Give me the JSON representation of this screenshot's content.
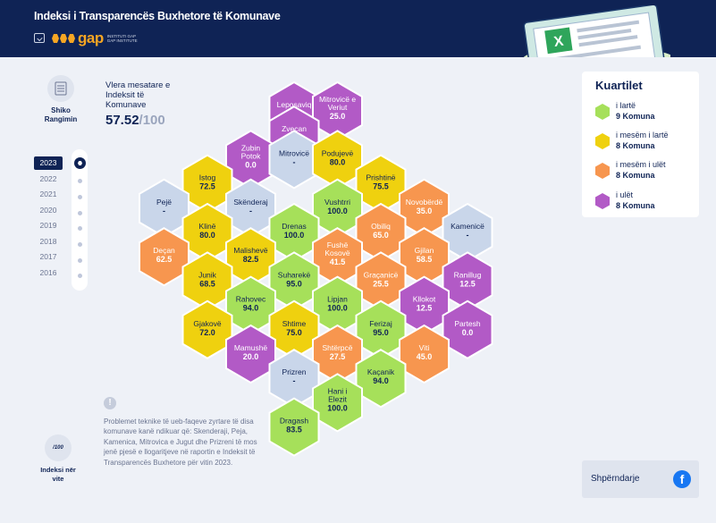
{
  "header": {
    "title": "Indeksi i Transparencës Buxhetore të Komunave",
    "logo_word": "gap",
    "logo_sub_1": "INSTITUTI GAP",
    "logo_sub_2": "GAP INSTITUTE"
  },
  "summary": {
    "rank_link": "Shiko Rangimin",
    "avg_label": "Vlera mesatare e Indeksit të Komunave",
    "avg_value": "57.52",
    "avg_den": "/100"
  },
  "years": {
    "items": [
      "2023",
      "2022",
      "2021",
      "2020",
      "2019",
      "2018",
      "2017",
      "2016"
    ],
    "selected": "2023"
  },
  "note": {
    "icon": "!",
    "text": "Problemet teknike të ueb-faqeve zyrtare të disa komunave kanë ndikuar që: Skenderaji, Peja, Kamenica, Mitrovica e Jugut dhe Prizreni të mos jenë pjesë e llogaritjeve në raportin e Indeksit të Transparencës Buxhetore për vitin 2023."
  },
  "index_link": {
    "icon_text": "/100",
    "label": "Indeksi nër vite"
  },
  "legend": {
    "title": "Kuartilet",
    "items": [
      {
        "name": "i lartë",
        "count": "9 Komuna",
        "color": "#a6e05a"
      },
      {
        "name": "i mesëm i lartë",
        "count": "8 Komuna",
        "color": "#efd10f"
      },
      {
        "name": "i mesëm i ulët",
        "count": "8 Komuna",
        "color": "#f7964f"
      },
      {
        "name": "i ulët",
        "count": "8 Komuna",
        "color": "#b25ac6"
      }
    ]
  },
  "share": {
    "label": "Shpërndarje",
    "icon": "f"
  },
  "colors": {
    "high": "#a6e05a",
    "midhigh": "#efd10f",
    "midlow": "#f7964f",
    "low": "#b25ac6",
    "na": "#c9d6ea"
  },
  "municipalities": [
    {
      "name": "Leposaviq",
      "value": "0.0",
      "tier": "low",
      "col": 6,
      "row": 0
    },
    {
      "name": "Mitrovicë e Veriut",
      "value": "25.0",
      "tier": "low",
      "col": 7,
      "row": 0
    },
    {
      "name": "Zveçan",
      "value": "0.0",
      "tier": "low",
      "col": 6,
      "row": 1
    },
    {
      "name": "Zubin Potok",
      "value": "0.0",
      "tier": "low",
      "col": 5,
      "row": 2
    },
    {
      "name": "Mitrovicë",
      "value": "-",
      "tier": "na",
      "col": 6,
      "row": 2
    },
    {
      "name": "Podujevë",
      "value": "80.0",
      "tier": "midhigh",
      "col": 7,
      "row": 2
    },
    {
      "name": "Istog",
      "value": "72.5",
      "tier": "midhigh",
      "col": 4,
      "row": 3
    },
    {
      "name": "Prishtinë",
      "value": "75.5",
      "tier": "midhigh",
      "col": 8,
      "row": 3
    },
    {
      "name": "Pejë",
      "value": "-",
      "tier": "na",
      "col": 3,
      "row": 4
    },
    {
      "name": "Skënderaj",
      "value": "-",
      "tier": "na",
      "col": 5,
      "row": 4
    },
    {
      "name": "Vushtrri",
      "value": "100.0",
      "tier": "high",
      "col": 7,
      "row": 4
    },
    {
      "name": "Novobërdë",
      "value": "35.0",
      "tier": "midlow",
      "col": 9,
      "row": 4
    },
    {
      "name": "Klinë",
      "value": "80.0",
      "tier": "midhigh",
      "col": 4,
      "row": 5
    },
    {
      "name": "Drenas",
      "value": "100.0",
      "tier": "high",
      "col": 6,
      "row": 5
    },
    {
      "name": "Obiliq",
      "value": "65.0",
      "tier": "midlow",
      "col": 8,
      "row": 5
    },
    {
      "name": "Kamenicë",
      "value": "-",
      "tier": "na",
      "col": 10,
      "row": 5
    },
    {
      "name": "Deçan",
      "value": "62.5",
      "tier": "midlow",
      "col": 3,
      "row": 6
    },
    {
      "name": "Malishevë",
      "value": "82.5",
      "tier": "midhigh",
      "col": 5,
      "row": 6
    },
    {
      "name": "Fushë Kosovë",
      "value": "41.5",
      "tier": "midlow",
      "col": 7,
      "row": 6
    },
    {
      "name": "Gjilan",
      "value": "58.5",
      "tier": "midlow",
      "col": 9,
      "row": 6
    },
    {
      "name": "Junik",
      "value": "68.5",
      "tier": "midhigh",
      "col": 4,
      "row": 7
    },
    {
      "name": "Suharekë",
      "value": "95.0",
      "tier": "high",
      "col": 6,
      "row": 7
    },
    {
      "name": "Graçanicë",
      "value": "25.5",
      "tier": "midlow",
      "col": 8,
      "row": 7
    },
    {
      "name": "Ranillug",
      "value": "12.5",
      "tier": "low",
      "col": 10,
      "row": 7
    },
    {
      "name": "Rahovec",
      "value": "94.0",
      "tier": "high",
      "col": 5,
      "row": 8
    },
    {
      "name": "Lipjan",
      "value": "100.0",
      "tier": "high",
      "col": 7,
      "row": 8
    },
    {
      "name": "Kllokot",
      "value": "12.5",
      "tier": "low",
      "col": 9,
      "row": 8
    },
    {
      "name": "Gjakovë",
      "value": "72.0",
      "tier": "midhigh",
      "col": 4,
      "row": 9
    },
    {
      "name": "Shtime",
      "value": "75.0",
      "tier": "midhigh",
      "col": 6,
      "row": 9
    },
    {
      "name": "Ferizaj",
      "value": "95.0",
      "tier": "high",
      "col": 8,
      "row": 9
    },
    {
      "name": "Partesh",
      "value": "0.0",
      "tier": "low",
      "col": 10,
      "row": 9
    },
    {
      "name": "Mamushë",
      "value": "20.0",
      "tier": "low",
      "col": 5,
      "row": 10
    },
    {
      "name": "Shtërpcë",
      "value": "27.5",
      "tier": "midlow",
      "col": 7,
      "row": 10
    },
    {
      "name": "Viti",
      "value": "45.0",
      "tier": "midlow",
      "col": 9,
      "row": 10
    },
    {
      "name": "Prizren",
      "value": "-",
      "tier": "na",
      "col": 6,
      "row": 11
    },
    {
      "name": "Kaçanik",
      "value": "94.0",
      "tier": "high",
      "col": 8,
      "row": 11
    },
    {
      "name": "Hani i Elezit",
      "value": "100.0",
      "tier": "high",
      "col": 7,
      "row": 12
    },
    {
      "name": "Dragash",
      "value": "83.5",
      "tier": "high",
      "col": 6,
      "row": 13
    }
  ]
}
